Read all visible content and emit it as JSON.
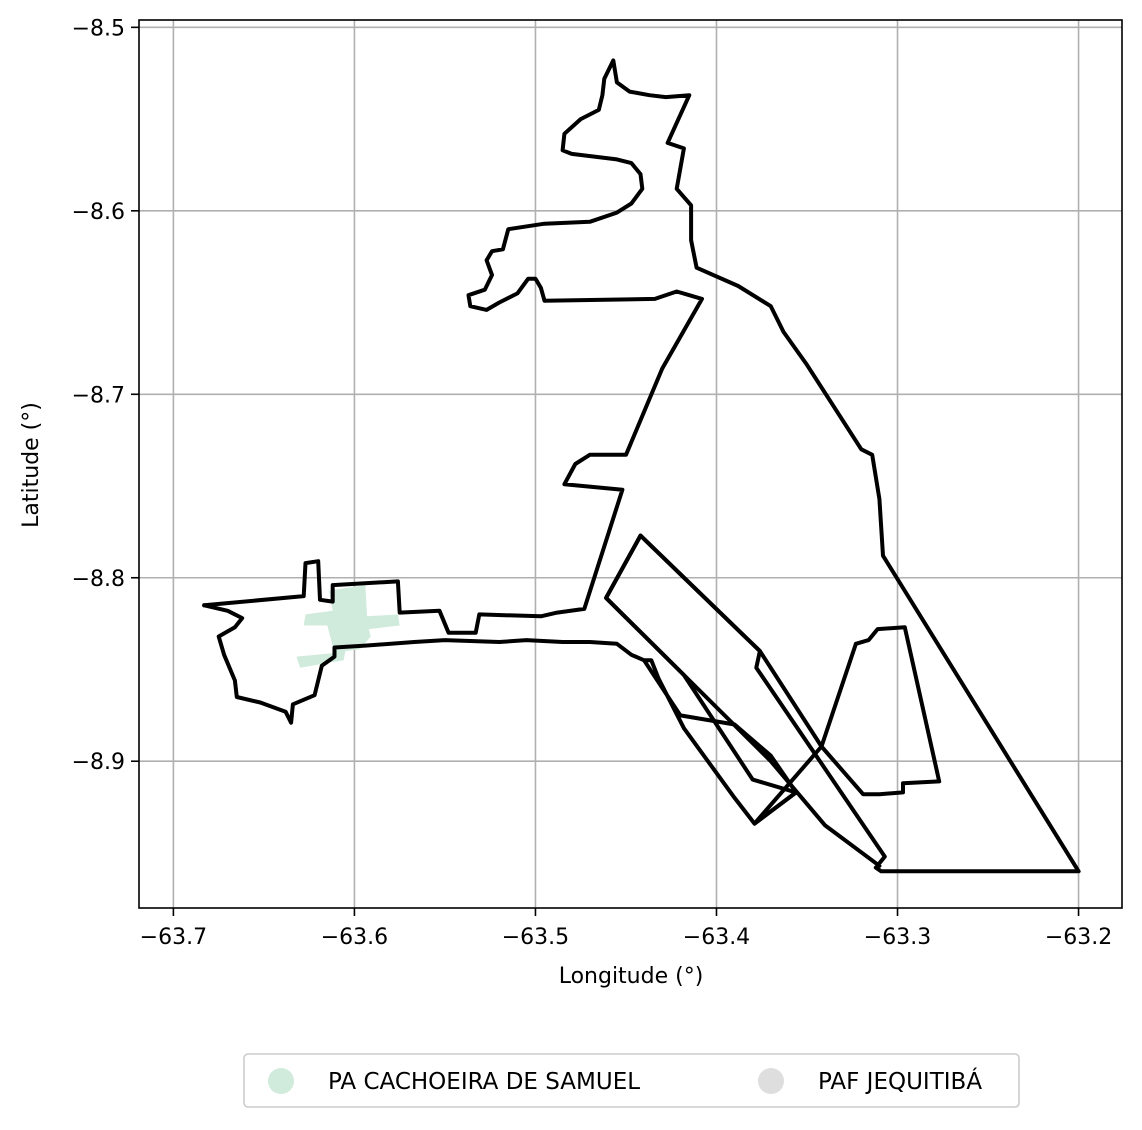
{
  "chart_data": {
    "type": "map",
    "xlabel": "Longitude (°)",
    "ylabel": "Latitude (°)",
    "xlim": [
      -63.719,
      -63.176
    ],
    "ylim": [
      -8.98,
      -8.496
    ],
    "grid": true,
    "x_ticks": [
      {
        "value": -63.7,
        "label": "−63.7"
      },
      {
        "value": -63.6,
        "label": "−63.6"
      },
      {
        "value": -63.5,
        "label": "−63.5"
      },
      {
        "value": -63.4,
        "label": "−63.4"
      },
      {
        "value": -63.3,
        "label": "−63.3"
      },
      {
        "value": -63.2,
        "label": "−63.2"
      }
    ],
    "y_ticks": [
      {
        "value": -8.5,
        "label": "−8.5"
      },
      {
        "value": -8.6,
        "label": "−8.6"
      },
      {
        "value": -8.7,
        "label": "−8.7"
      },
      {
        "value": -8.8,
        "label": "−8.8"
      },
      {
        "value": -8.9,
        "label": "−8.9"
      }
    ],
    "legend_position": "bottom-center",
    "legend": [
      {
        "label": "PA CACHOEIRA DE SAMUEL",
        "color": "#d0ebdc"
      },
      {
        "label": "PAF JEQUITIBÁ",
        "color": "#dedede"
      }
    ],
    "regions": [
      {
        "kind": "filled",
        "color": "#d0ebdc",
        "coords": [
          [
            -63.614,
            -8.807
          ],
          [
            -63.594,
            -8.804
          ],
          [
            -63.593,
            -8.821
          ],
          [
            -63.576,
            -8.82
          ],
          [
            -63.575,
            -8.826
          ],
          [
            -63.592,
            -8.828
          ],
          [
            -63.591,
            -8.832
          ],
          [
            -63.597,
            -8.839
          ],
          [
            -63.605,
            -8.84
          ],
          [
            -63.606,
            -8.845
          ],
          [
            -63.63,
            -8.849
          ],
          [
            -63.632,
            -8.843
          ],
          [
            -63.611,
            -8.841
          ],
          [
            -63.615,
            -8.826
          ],
          [
            -63.628,
            -8.826
          ],
          [
            -63.627,
            -8.82
          ],
          [
            -63.612,
            -8.818
          ]
        ]
      },
      {
        "kind": "outline",
        "coords": [
          [
            -63.683,
            -8.815
          ],
          [
            -63.628,
            -8.81
          ],
          [
            -63.627,
            -8.792
          ],
          [
            -63.62,
            -8.791
          ],
          [
            -63.619,
            -8.812
          ],
          [
            -63.612,
            -8.813
          ],
          [
            -63.612,
            -8.804
          ],
          [
            -63.576,
            -8.802
          ],
          [
            -63.575,
            -8.819
          ],
          [
            -63.553,
            -8.818
          ],
          [
            -63.548,
            -8.83
          ],
          [
            -63.533,
            -8.83
          ],
          [
            -63.531,
            -8.82
          ],
          [
            -63.497,
            -8.821
          ],
          [
            -63.488,
            -8.819
          ],
          [
            -63.473,
            -8.817
          ],
          [
            -63.452,
            -8.752
          ],
          [
            -63.484,
            -8.749
          ],
          [
            -63.478,
            -8.738
          ],
          [
            -63.47,
            -8.733
          ],
          [
            -63.46,
            -8.733
          ],
          [
            -63.45,
            -8.733
          ],
          [
            -63.43,
            -8.686
          ],
          [
            -63.408,
            -8.648
          ],
          [
            -63.415,
            -8.646
          ],
          [
            -63.422,
            -8.644
          ],
          [
            -63.434,
            -8.648
          ],
          [
            -63.495,
            -8.649
          ],
          [
            -63.497,
            -8.642
          ],
          [
            -63.5,
            -8.637
          ],
          [
            -63.504,
            -8.637
          ],
          [
            -63.51,
            -8.645
          ],
          [
            -63.52,
            -8.65
          ],
          [
            -63.527,
            -8.654
          ],
          [
            -63.536,
            -8.652
          ],
          [
            -63.537,
            -8.646
          ],
          [
            -63.528,
            -8.643
          ],
          [
            -63.524,
            -8.635
          ],
          [
            -63.527,
            -8.627
          ],
          [
            -63.524,
            -8.622
          ],
          [
            -63.518,
            -8.621
          ],
          [
            -63.515,
            -8.61
          ],
          [
            -63.495,
            -8.607
          ],
          [
            -63.47,
            -8.606
          ],
          [
            -63.455,
            -8.601
          ],
          [
            -63.447,
            -8.596
          ],
          [
            -63.441,
            -8.588
          ],
          [
            -63.442,
            -8.58
          ],
          [
            -63.447,
            -8.574
          ],
          [
            -63.455,
            -8.572
          ],
          [
            -63.48,
            -8.569
          ],
          [
            -63.485,
            -8.567
          ],
          [
            -63.484,
            -8.558
          ],
          [
            -63.475,
            -8.55
          ],
          [
            -63.465,
            -8.545
          ],
          [
            -63.463,
            -8.537
          ],
          [
            -63.462,
            -8.528
          ],
          [
            -63.457,
            -8.518
          ],
          [
            -63.455,
            -8.53
          ],
          [
            -63.448,
            -8.535
          ],
          [
            -63.437,
            -8.537
          ],
          [
            -63.428,
            -8.538
          ],
          [
            -63.415,
            -8.537
          ],
          [
            -63.427,
            -8.563
          ],
          [
            -63.418,
            -8.566
          ],
          [
            -63.422,
            -8.588
          ],
          [
            -63.414,
            -8.597
          ],
          [
            -63.414,
            -8.616
          ],
          [
            -63.411,
            -8.631
          ],
          [
            -63.388,
            -8.641
          ],
          [
            -63.37,
            -8.652
          ],
          [
            -63.363,
            -8.666
          ],
          [
            -63.35,
            -8.684
          ],
          [
            -63.32,
            -8.73
          ],
          [
            -63.314,
            -8.733
          ],
          [
            -63.31,
            -8.757
          ],
          [
            -63.308,
            -8.788
          ],
          [
            -63.2,
            -8.96
          ],
          [
            -63.309,
            -8.96
          ],
          [
            -63.312,
            -8.958
          ],
          [
            -63.307,
            -8.952
          ],
          [
            -63.378,
            -8.849
          ],
          [
            -63.376,
            -8.84
          ],
          [
            -63.442,
            -8.777
          ],
          [
            -63.461,
            -8.811
          ],
          [
            -63.418,
            -8.853
          ],
          [
            -63.37,
            -8.9
          ],
          [
            -63.34,
            -8.935
          ],
          [
            -63.31,
            -8.957
          ]
        ]
      },
      {
        "kind": "outline",
        "coords": [
          [
            -63.683,
            -8.815
          ],
          [
            -63.67,
            -8.818
          ],
          [
            -63.662,
            -8.822
          ],
          [
            -63.666,
            -8.827
          ],
          [
            -63.675,
            -8.832
          ],
          [
            -63.672,
            -8.842
          ],
          [
            -63.666,
            -8.856
          ],
          [
            -63.665,
            -8.865
          ],
          [
            -63.652,
            -8.868
          ],
          [
            -63.638,
            -8.873
          ],
          [
            -63.635,
            -8.879
          ],
          [
            -63.634,
            -8.869
          ],
          [
            -63.622,
            -8.864
          ],
          [
            -63.618,
            -8.848
          ],
          [
            -63.611,
            -8.843
          ],
          [
            -63.611,
            -8.838
          ],
          [
            -63.594,
            -8.837
          ],
          [
            -63.567,
            -8.835
          ],
          [
            -63.55,
            -8.834
          ],
          [
            -63.52,
            -8.835
          ],
          [
            -63.505,
            -8.834
          ],
          [
            -63.485,
            -8.835
          ],
          [
            -63.47,
            -8.835
          ],
          [
            -63.455,
            -8.836
          ],
          [
            -63.447,
            -8.842
          ],
          [
            -63.44,
            -8.845
          ],
          [
            -63.42,
            -8.875
          ],
          [
            -63.39,
            -8.88
          ],
          [
            -63.37,
            -8.897
          ],
          [
            -63.356,
            -8.917
          ],
          [
            -63.379,
            -8.934
          ],
          [
            -63.39,
            -8.92
          ],
          [
            -63.418,
            -8.882
          ],
          [
            -63.432,
            -8.855
          ],
          [
            -63.436,
            -8.845
          ],
          [
            -63.44,
            -8.845
          ]
        ]
      },
      {
        "kind": "outline",
        "coords": [
          [
            -63.323,
            -8.836
          ],
          [
            -63.316,
            -8.834
          ],
          [
            -63.311,
            -8.828
          ],
          [
            -63.296,
            -8.827
          ],
          [
            -63.277,
            -8.911
          ],
          [
            -63.297,
            -8.912
          ],
          [
            -63.297,
            -8.917
          ],
          [
            -63.31,
            -8.918
          ],
          [
            -63.319,
            -8.918
          ],
          [
            -63.342,
            -8.892
          ],
          [
            -63.323,
            -8.836
          ]
        ]
      },
      {
        "kind": "outline",
        "coords": [
          [
            -63.342,
            -8.892
          ],
          [
            -63.376,
            -8.84
          ],
          [
            -63.442,
            -8.777
          ],
          [
            -63.461,
            -8.811
          ],
          [
            -63.418,
            -8.853
          ],
          [
            -63.38,
            -8.91
          ],
          [
            -63.356,
            -8.917
          ],
          [
            -63.379,
            -8.934
          ],
          [
            -63.342,
            -8.892
          ]
        ]
      }
    ]
  }
}
